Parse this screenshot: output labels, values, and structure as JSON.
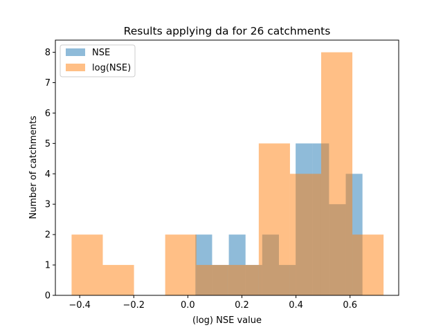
{
  "chart_data": {
    "type": "bar",
    "title": "Results applying da for 26 catchments",
    "xlabel": "(log) NSE value",
    "ylabel": "Number of catchments",
    "xlim": [
      -0.49,
      0.78
    ],
    "ylim": [
      0,
      8.4
    ],
    "xticks": [
      -0.4,
      -0.2,
      0.0,
      0.2,
      0.4,
      0.6
    ],
    "xtick_labels": [
      "−0.4",
      "−0.2",
      "0.0",
      "0.2",
      "0.4",
      "0.6"
    ],
    "yticks": [
      0,
      1,
      2,
      3,
      4,
      5,
      6,
      7,
      8
    ],
    "ytick_labels": [
      "0",
      "1",
      "2",
      "3",
      "4",
      "5",
      "6",
      "7",
      "8"
    ],
    "legend_position": "top-left",
    "grid": false,
    "series": [
      {
        "name": "NSE",
        "color": "#1f77b4",
        "opacity": 0.5,
        "bin_edges": [
          0.028,
          0.0898,
          0.1516,
          0.2134,
          0.2752,
          0.337,
          0.3988,
          0.4606,
          0.5224,
          0.5842,
          0.646
        ],
        "counts": [
          2,
          1,
          2,
          1,
          2,
          1,
          5,
          5,
          3,
          4
        ]
      },
      {
        "name": "log(NSE)",
        "color": "#ff7f0e",
        "opacity": 0.5,
        "bin_edges": [
          -0.43,
          -0.3146,
          -0.1992,
          -0.0838,
          0.0316,
          0.147,
          0.2624,
          0.3778,
          0.4932,
          0.6086,
          0.724
        ],
        "counts": [
          2,
          1,
          0,
          2,
          1,
          1,
          5,
          4,
          8,
          2
        ],
        "split_last_bins": true
      }
    ]
  }
}
